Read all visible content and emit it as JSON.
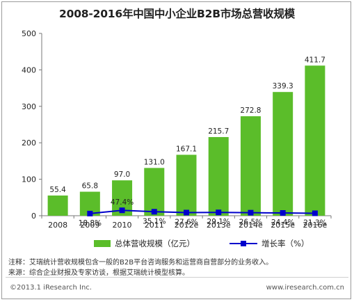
{
  "chart_data": {
    "type": "bar",
    "title": "2008-2016年中国中小企业B2B市场总营收规模",
    "categories": [
      "2008",
      "2009",
      "2010",
      "2011",
      "2012e",
      "2013e",
      "2014e",
      "2015e",
      "2016e"
    ],
    "series": [
      {
        "name": "总体营收规模（亿元）",
        "type": "bar",
        "values": [
          55.4,
          65.8,
          97.0,
          131.0,
          167.1,
          215.7,
          272.8,
          339.3,
          411.7
        ],
        "labels": [
          "55.4",
          "65.8",
          "97.0",
          "131.0",
          "167.1",
          "215.7",
          "272.8",
          "339.3",
          "411.7"
        ],
        "color": "#5bbd2a"
      },
      {
        "name": "增长率（%）",
        "type": "line",
        "values": [
          null,
          18.8,
          47.4,
          35.1,
          27.6,
          29.1,
          26.5,
          24.4,
          21.3
        ],
        "labels": [
          "",
          "18.8%",
          "47.4%",
          "35.1%",
          "27.6%",
          "29.1%",
          "26.5%",
          "24.4%",
          "21.3%"
        ],
        "color": "#0000cc"
      }
    ],
    "ylim": [
      0,
      500
    ],
    "yticks": [
      "0",
      "100",
      "200",
      "300",
      "400",
      "500"
    ],
    "rate_axis_range": [
      0,
      1600
    ],
    "grid": false,
    "legend": "bottom"
  },
  "legend": {
    "bar_label": "总体营收规模（亿元）",
    "line_label": "增长率（%）"
  },
  "notes": {
    "note": "注释：艾瑞统计营收规模包含一般的B2B平台咨询服务和运营商自营部分的业务收入。",
    "source": "来源：综合企业财报及专家访谈，根据艾瑞统计模型核算。"
  },
  "footer": {
    "copyright": "©2013.1 iResearch Inc.",
    "website": "www.iresearch.com.cn"
  }
}
